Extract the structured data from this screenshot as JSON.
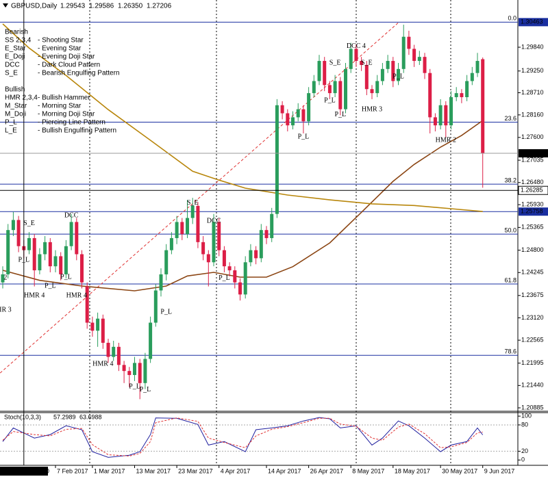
{
  "chart_data": {
    "type": "candlestick",
    "symbol": "GBPUSD,Daily",
    "last_bar_labels": [
      "1.29543",
      "1.29586",
      "1.26350",
      "1.27206"
    ],
    "up_color": "#2a9d5c",
    "down_color": "#dc1e46",
    "xlim": [
      -0.52,
      97.66
    ],
    "ylim": [
      1.20817,
      1.30707
    ],
    "yticks": [
      {
        "value": 1.2984,
        "label": "1.29840"
      },
      {
        "value": 1.2925,
        "label": "1.29250"
      },
      {
        "value": 1.2871,
        "label": "1.28710"
      },
      {
        "value": 1.2816,
        "label": "1.28160"
      },
      {
        "value": 1.276,
        "label": "1.27600"
      },
      1.27035,
      {
        "value": 1.2648,
        "label": "1.26480"
      },
      {
        "value": 1.2593,
        "label": "1.25930"
      },
      1.25365,
      {
        "value": 1.248,
        "label": "1.24800"
      },
      1.24245,
      1.23675,
      {
        "value": 1.2312,
        "label": "1.23120"
      },
      1.22565,
      1.21995,
      {
        "value": 1.2144,
        "label": "1.21440"
      },
      1.20885
    ],
    "xticks": [
      {
        "value": 10,
        "label": "7 Feb 2017"
      },
      {
        "value": 17,
        "label": "1 Mar 2017"
      },
      {
        "value": 25,
        "label": "13 Mar 2017"
      },
      {
        "value": 33,
        "label": "23 Mar 2017"
      },
      {
        "value": 41,
        "label": "4 Apr 2017"
      },
      {
        "value": 50,
        "label": "14 Apr 2017"
      },
      {
        "value": 58,
        "label": "26 Apr 2017"
      },
      {
        "value": 66,
        "label": "8 May 2017"
      },
      {
        "value": 74,
        "label": "18 May 2017"
      },
      {
        "value": 83,
        "label": "30 May 2017"
      },
      {
        "value": 91,
        "label": "9 Jun 2017"
      }
    ],
    "candles": [
      [
        1.24,
        1.244,
        1.2385,
        1.242
      ],
      [
        1.242,
        1.2545,
        1.241,
        1.253
      ],
      [
        1.253,
        1.2575,
        1.2515,
        1.2555
      ],
      [
        1.2555,
        1.2565,
        1.2475,
        1.249
      ],
      [
        1.249,
        1.2505,
        1.246,
        1.248
      ],
      [
        1.248,
        1.2525,
        1.247,
        1.251
      ],
      [
        1.251,
        1.252,
        1.239,
        1.243
      ],
      [
        1.243,
        1.2485,
        1.242,
        1.247
      ],
      [
        1.247,
        1.2515,
        1.2455,
        1.25
      ],
      [
        1.25,
        1.251,
        1.2425,
        1.244
      ],
      [
        1.244,
        1.248,
        1.2425,
        1.2465
      ],
      [
        1.2465,
        1.2475,
        1.2405,
        1.242
      ],
      [
        1.242,
        1.2505,
        1.241,
        1.249
      ],
      [
        1.249,
        1.257,
        1.248,
        1.255
      ],
      [
        1.255,
        1.256,
        1.2455,
        1.247
      ],
      [
        1.247,
        1.248,
        1.2385,
        1.24
      ],
      [
        1.239,
        1.24,
        1.2285,
        1.23
      ],
      [
        1.23,
        1.2315,
        1.2265,
        1.228
      ],
      [
        1.228,
        1.2325,
        1.224,
        1.231
      ],
      [
        1.231,
        1.232,
        1.2235,
        1.225
      ],
      [
        1.225,
        1.226,
        1.22,
        1.2215
      ],
      [
        1.2215,
        1.2255,
        1.2205,
        1.224
      ],
      [
        1.224,
        1.225,
        1.218,
        1.2195
      ],
      [
        1.2195,
        1.2205,
        1.215,
        1.218
      ],
      [
        1.218,
        1.219,
        1.214,
        1.217
      ],
      [
        1.217,
        1.2215,
        1.2155,
        1.22
      ],
      [
        1.22,
        1.221,
        1.211,
        1.215
      ],
      [
        1.215,
        1.2225,
        1.2135,
        1.221
      ],
      [
        1.221,
        1.2315,
        1.22,
        1.23
      ],
      [
        1.23,
        1.2395,
        1.229,
        1.238
      ],
      [
        1.238,
        1.2435,
        1.2365,
        1.242
      ],
      [
        1.242,
        1.2495,
        1.2405,
        1.248
      ],
      [
        1.248,
        1.2525,
        1.247,
        1.251
      ],
      [
        1.251,
        1.2565,
        1.2495,
        1.255
      ],
      [
        1.255,
        1.256,
        1.2505,
        1.252
      ],
      [
        1.252,
        1.2605,
        1.251,
        1.256
      ],
      [
        1.256,
        1.261,
        1.2545,
        1.259
      ],
      [
        1.259,
        1.26,
        1.2485,
        1.25
      ],
      [
        1.25,
        1.2515,
        1.2455,
        1.247
      ],
      [
        1.247,
        1.248,
        1.239,
        1.245
      ],
      [
        1.245,
        1.257,
        1.244,
        1.255
      ],
      [
        1.255,
        1.256,
        1.2465,
        1.248
      ],
      [
        1.248,
        1.249,
        1.2425,
        1.244
      ],
      [
        1.244,
        1.245,
        1.2415,
        1.243
      ],
      [
        1.243,
        1.244,
        1.2385,
        1.24
      ],
      [
        1.24,
        1.241,
        1.2355,
        1.237
      ],
      [
        1.237,
        1.2465,
        1.236,
        1.245
      ],
      [
        1.245,
        1.2495,
        1.244,
        1.248
      ],
      [
        1.248,
        1.249,
        1.2445,
        1.246
      ],
      [
        1.246,
        1.2545,
        1.245,
        1.253
      ],
      [
        1.253,
        1.254,
        1.2495,
        1.251
      ],
      [
        1.251,
        1.2585,
        1.25,
        1.257
      ],
      [
        1.257,
        1.2855,
        1.256,
        1.284
      ],
      [
        1.284,
        1.285,
        1.2805,
        1.282
      ],
      [
        1.282,
        1.283,
        1.2775,
        1.279
      ],
      [
        1.279,
        1.2825,
        1.278,
        1.281
      ],
      [
        1.281,
        1.2845,
        1.28,
        1.283
      ],
      [
        1.283,
        1.284,
        1.277,
        1.28
      ],
      [
        1.28,
        1.2885,
        1.279,
        1.287
      ],
      [
        1.287,
        1.2915,
        1.286,
        1.29
      ],
      [
        1.29,
        1.2965,
        1.289,
        1.295
      ],
      [
        1.295,
        1.296,
        1.2875,
        1.289
      ],
      [
        1.289,
        1.29,
        1.2855,
        1.287
      ],
      [
        1.287,
        1.2915,
        1.286,
        1.29
      ],
      [
        1.29,
        1.291,
        1.2815,
        1.283
      ],
      [
        1.283,
        1.2945,
        1.282,
        1.293
      ],
      [
        1.293,
        1.2995,
        1.292,
        1.298
      ],
      [
        1.298,
        1.299,
        1.2935,
        1.295
      ],
      [
        1.295,
        1.296,
        1.2925,
        1.294
      ],
      [
        1.294,
        1.295,
        1.2865,
        1.288
      ],
      [
        1.288,
        1.289,
        1.2855,
        1.287
      ],
      [
        1.287,
        1.2915,
        1.286,
        1.29
      ],
      [
        1.29,
        1.2945,
        1.289,
        1.293
      ],
      [
        1.293,
        1.2965,
        1.292,
        1.295
      ],
      [
        1.295,
        1.296,
        1.2885,
        1.29
      ],
      [
        1.29,
        1.2945,
        1.289,
        1.293
      ],
      [
        1.293,
        1.304,
        1.292,
        1.301
      ],
      [
        1.301,
        1.3025,
        1.2965,
        1.298
      ],
      [
        1.298,
        1.299,
        1.2935,
        1.295
      ],
      [
        1.295,
        1.2975,
        1.294,
        1.296
      ],
      [
        1.296,
        1.297,
        1.2905,
        1.292
      ],
      [
        1.292,
        1.293,
        1.277,
        1.281
      ],
      [
        1.281,
        1.282,
        1.2775,
        1.279
      ],
      [
        1.279,
        1.2855,
        1.278,
        1.284
      ],
      [
        1.284,
        1.285,
        1.276,
        1.279
      ],
      [
        1.279,
        1.2875,
        1.278,
        1.286
      ],
      [
        1.286,
        1.2885,
        1.285,
        1.287
      ],
      [
        1.287,
        1.288,
        1.2845,
        1.286
      ],
      [
        1.286,
        1.2915,
        1.285,
        1.29
      ],
      [
        1.29,
        1.2935,
        1.289,
        1.292
      ],
      [
        1.292,
        1.297,
        1.291,
        1.295
      ],
      [
        1.29543,
        1.29586,
        1.2635,
        1.27206
      ]
    ],
    "moving_averages": [
      {
        "color": "#8b4513",
        "x": [
          0,
          7,
          15,
          25,
          31,
          35,
          40,
          45,
          50,
          55,
          62,
          68,
          74,
          78,
          83,
          87,
          91
        ],
        "values": [
          1.243,
          1.2405,
          1.2391,
          1.2379,
          1.2391,
          1.2416,
          1.2425,
          1.2413,
          1.2413,
          1.2439,
          1.2498,
          1.2574,
          1.2651,
          1.2693,
          1.2736,
          1.2765,
          1.2802
        ]
      },
      {
        "color": "#b8860b",
        "x": [
          0,
          5,
          12,
          20,
          28,
          36,
          41,
          46,
          54,
          62,
          70,
          78,
          85,
          91
        ],
        "values": [
          1.3042,
          1.2982,
          1.2914,
          1.2829,
          1.2753,
          1.2676,
          1.2654,
          1.2634,
          1.2617,
          1.2605,
          1.2595,
          1.2591,
          1.2583,
          1.2576
        ]
      }
    ],
    "trend_line": {
      "color": "#e03030",
      "x": [
        -0.5,
        75
      ],
      "values": [
        1.2175,
        1.3045
      ]
    },
    "fib_levels": [
      {
        "value": 1.30463,
        "label": "0.0"
      },
      {
        "value": 1.2798,
        "label": "23.6"
      },
      {
        "value": 1.2644,
        "label": "38.2"
      },
      {
        "value": 1.252,
        "label": "50.0"
      },
      {
        "value": 1.2396,
        "label": "61.8"
      },
      {
        "value": 1.2219,
        "label": "78.6"
      }
    ],
    "fib_color": "#1a2fa0",
    "hlines": [
      {
        "value": 1.25758,
        "color": "#1a2fa0"
      }
    ],
    "crosshair": {
      "label": "2017.02.13 00:00",
      "x": 4,
      "price": 1.26285
    },
    "annotations": [
      {
        "label": "2",
        "x": 0.5,
        "price": 1.2411,
        "color": "#1a2fa0"
      },
      {
        "label": "IR 3",
        "x": 0.5,
        "price": 1.2331,
        "color": "#1a2fa0"
      },
      {
        "label": "S_E",
        "x": 5,
        "price": 1.2546,
        "color": "#d02020"
      },
      {
        "label": "P_L",
        "x": 4,
        "price": 1.2455,
        "color": "#1a2fa0"
      },
      {
        "label": "HMR 4",
        "x": 6,
        "price": 1.2367,
        "color": "#1a2fa0"
      },
      {
        "label": "P_L",
        "x": 9,
        "price": 1.2391,
        "color": "#1a2fa0"
      },
      {
        "label": "P_L",
        "x": 12,
        "price": 1.2413,
        "color": "#1a2fa0"
      },
      {
        "label": "DCC",
        "x": 13,
        "price": 1.2566,
        "color": "#d02020"
      },
      {
        "label": "HMR 4",
        "x": 14,
        "price": 1.2367,
        "color": "#1a2fa0"
      },
      {
        "label": "HMR 4",
        "x": 19,
        "price": 1.2197,
        "color": "#1a2fa0"
      },
      {
        "label": "P_L",
        "x": 25,
        "price": 1.2141,
        "color": "#1a2fa0"
      },
      {
        "label": "P_L",
        "x": 27,
        "price": 1.2133,
        "color": "#1a2fa0"
      },
      {
        "label": "P_L",
        "x": 31,
        "price": 1.2326,
        "color": "#1a2fa0"
      },
      {
        "label": "S_E",
        "x": 36,
        "price": 1.2597,
        "color": "#d02020"
      },
      {
        "label": "DCC",
        "x": 40,
        "price": 1.2552,
        "color": "#d02020"
      },
      {
        "label": "P_L",
        "x": 42,
        "price": 1.241,
        "color": "#1a2fa0"
      },
      {
        "label": "P_L",
        "x": 57,
        "price": 1.2761,
        "color": "#1a2fa0"
      },
      {
        "label": "P_L",
        "x": 62,
        "price": 1.2851,
        "color": "#1a2fa0"
      },
      {
        "label": "S_E",
        "x": 63,
        "price": 1.2945,
        "color": "#d02020"
      },
      {
        "label": "P_L",
        "x": 64,
        "price": 1.2816,
        "color": "#1a2fa0"
      },
      {
        "label": "DCC 4",
        "x": 67,
        "price": 1.2986,
        "color": "#d02020"
      },
      {
        "label": "S_E",
        "x": 69,
        "price": 1.2945,
        "color": "#d02020"
      },
      {
        "label": "HMR 3",
        "x": 70,
        "price": 1.2829,
        "color": "#1a2fa0"
      },
      {
        "label": "P_L",
        "x": 75,
        "price": 1.2911,
        "color": "#1a2fa0"
      },
      {
        "label": "HMR 2",
        "x": 84,
        "price": 1.2753,
        "color": "#1a2fa0"
      }
    ],
    "legend": [
      {
        "title": "Bearish",
        "items": [
          {
            "code": "SS 2,3,4",
            "desc": "- Shooting Star"
          },
          {
            "code": "E_Star",
            "desc": "- Evening Star"
          },
          {
            "code": "E_Doji",
            "desc": "- Evening Doji Star"
          },
          {
            "code": "DCC",
            "desc": "- Dark Cloud Pattern"
          },
          {
            "code": "S_E",
            "desc": "- Bearish Engulfing Pattern"
          }
        ]
      },
      {
        "title": "Bullish",
        "items": [
          {
            "code": "HMR 2,3,4",
            "desc": "- Bullish Hammer"
          },
          {
            "code": "M_Star",
            "desc": "- Morning Star"
          },
          {
            "code": "M_Doji",
            "desc": "- Morning Doji Star"
          },
          {
            "code": "P_L",
            "desc": "- Piercing Line Pattern"
          },
          {
            "code": "L_E",
            "desc": "- Bullish Engulfing Pattern"
          }
        ]
      }
    ],
    "stoch": {
      "title": "Stoch(10,3,3)",
      "ylim": [
        -9,
        108
      ],
      "yticks": [
        100,
        80,
        20,
        0
      ],
      "x": [
        0,
        2,
        6,
        9,
        12,
        15,
        17,
        20,
        24,
        26,
        28,
        29,
        33,
        37,
        39,
        42,
        46,
        48,
        51,
        54,
        57,
        60,
        62,
        64,
        67,
        70,
        72,
        75,
        77,
        80,
        83,
        85,
        88,
        90,
        91
      ],
      "main": {
        "color": "#1e1e9e",
        "values": [
          42,
          73,
          50,
          58,
          78,
          69,
          19,
          6,
          11,
          19,
          58,
          96,
          95,
          81,
          34,
          42,
          19,
          69,
          73,
          78,
          89,
          97,
          94,
          73,
          78,
          34,
          50,
          89,
          78,
          50,
          19,
          34,
          42,
          73,
          57.2989
        ]
      },
      "signal": {
        "color": "#e03030",
        "values": [
          45,
          65,
          58,
          55,
          70,
          72,
          35,
          12,
          9,
          15,
          42,
          85,
          96,
          88,
          50,
          40,
          28,
          55,
          70,
          76,
          85,
          95,
          95,
          82,
          77,
          50,
          45,
          75,
          82,
          60,
          28,
          30,
          40,
          62,
          63.6988
        ]
      }
    }
  }
}
